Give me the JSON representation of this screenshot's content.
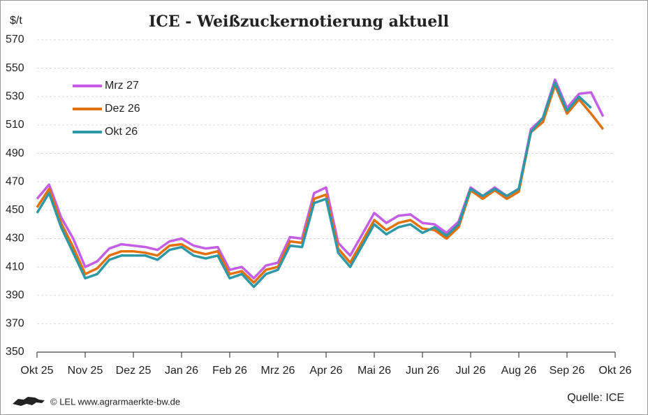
{
  "chart_data": {
    "type": "line",
    "title": "ICE - Weißzuckernotierung aktuell",
    "ylabel": "$/t",
    "source": "Quelle: ICE",
    "copyright": "© LEL www.agrarmaerkte-bw.de",
    "categories": [
      "Okt 25",
      null,
      null,
      null,
      "Nov 25",
      null,
      null,
      null,
      "Dez 25",
      null,
      null,
      null,
      "Jan 26",
      null,
      null,
      null,
      "Feb 26",
      null,
      null,
      null,
      "Mrz 26",
      null,
      null,
      null,
      "Apr 26",
      null,
      null,
      null,
      "Mai 26",
      null,
      null,
      null,
      "Jun 26",
      null,
      null,
      null,
      "Jul 26",
      null,
      null,
      null,
      "Aug 26",
      null,
      null,
      null,
      "Sep 26",
      null,
      null,
      null,
      "Okt 26"
    ],
    "series": [
      {
        "name": "Mrz 27",
        "color": "#c45ee6",
        "values": [
          458,
          468,
          445,
          430,
          410,
          414,
          423,
          426,
          425,
          424,
          422,
          428,
          430,
          425,
          423,
          424,
          408,
          410,
          402,
          411,
          413,
          431,
          430,
          462,
          466,
          427,
          418,
          433,
          448,
          441,
          446,
          447,
          441,
          440,
          434,
          442,
          466,
          460,
          466,
          460,
          465,
          507,
          515,
          542,
          522,
          532,
          533,
          516,
          null
        ]
      },
      {
        "name": "Dez 26",
        "color": "#e2700c",
        "values": [
          452,
          465,
          441,
          424,
          405,
          409,
          418,
          421,
          421,
          420,
          418,
          425,
          426,
          421,
          419,
          421,
          405,
          407,
          399,
          408,
          410,
          428,
          427,
          458,
          461,
          423,
          413,
          428,
          443,
          436,
          441,
          443,
          437,
          436,
          430,
          438,
          464,
          458,
          464,
          458,
          463,
          505,
          512,
          538,
          518,
          528,
          518,
          507,
          null
        ]
      },
      {
        "name": "Okt 26",
        "color": "#2f98a6",
        "values": [
          448,
          462,
          438,
          420,
          402,
          405,
          415,
          418,
          418,
          418,
          415,
          422,
          424,
          418,
          416,
          418,
          402,
          405,
          396,
          405,
          408,
          425,
          424,
          455,
          458,
          420,
          410,
          425,
          440,
          433,
          438,
          440,
          434,
          438,
          432,
          440,
          465,
          460,
          465,
          460,
          465,
          505,
          515,
          540,
          520,
          530,
          522,
          null,
          null
        ]
      }
    ],
    "ylim": [
      350,
      570
    ],
    "yticks": [
      350,
      370,
      390,
      410,
      430,
      450,
      470,
      490,
      510,
      530,
      550,
      570
    ],
    "grid": true,
    "legend": "upper left"
  }
}
